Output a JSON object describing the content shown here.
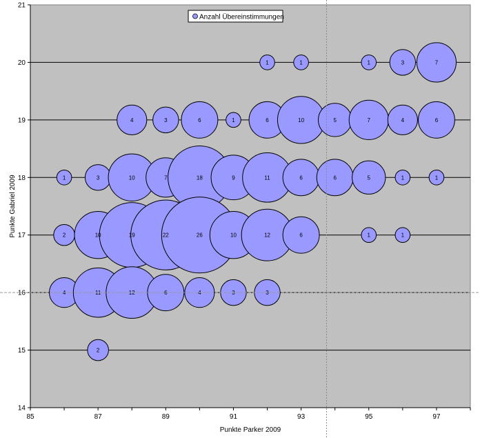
{
  "chart_data": {
    "type": "bubble",
    "xlabel": "Punkte Parker 2009",
    "ylabel": "Punkte Gabriel 2009",
    "xlim": [
      85,
      98
    ],
    "ylim": [
      14,
      21
    ],
    "xticks": [
      85,
      87,
      89,
      91,
      93,
      95,
      97
    ],
    "yticks": [
      14,
      15,
      16,
      17,
      18,
      19,
      20,
      21
    ],
    "grid": "horizontal",
    "legend": {
      "label": "Anzahl Übereinstimmungen",
      "placement": "top-center"
    },
    "colors": {
      "bubble": "#9999ff",
      "plot_bg": "#c0c0c0"
    },
    "series": [
      {
        "name": "Anzahl Übereinstimmungen",
        "points": [
          {
            "x": 92,
            "y": 20,
            "size": 1
          },
          {
            "x": 93,
            "y": 20,
            "size": 1
          },
          {
            "x": 95,
            "y": 20,
            "size": 1
          },
          {
            "x": 96,
            "y": 20,
            "size": 3
          },
          {
            "x": 97,
            "y": 20,
            "size": 7
          },
          {
            "x": 88,
            "y": 19,
            "size": 4
          },
          {
            "x": 89,
            "y": 19,
            "size": 3
          },
          {
            "x": 90,
            "y": 19,
            "size": 6
          },
          {
            "x": 91,
            "y": 19,
            "size": 1
          },
          {
            "x": 92,
            "y": 19,
            "size": 6
          },
          {
            "x": 93,
            "y": 19,
            "size": 10
          },
          {
            "x": 94,
            "y": 19,
            "size": 5
          },
          {
            "x": 95,
            "y": 19,
            "size": 7
          },
          {
            "x": 96,
            "y": 19,
            "size": 4
          },
          {
            "x": 97,
            "y": 19,
            "size": 6
          },
          {
            "x": 86,
            "y": 18,
            "size": 1
          },
          {
            "x": 87,
            "y": 18,
            "size": 3
          },
          {
            "x": 88,
            "y": 18,
            "size": 10
          },
          {
            "x": 89,
            "y": 18,
            "size": 7
          },
          {
            "x": 90,
            "y": 18,
            "size": 18
          },
          {
            "x": 91,
            "y": 18,
            "size": 9
          },
          {
            "x": 92,
            "y": 18,
            "size": 11
          },
          {
            "x": 93,
            "y": 18,
            "size": 6
          },
          {
            "x": 94,
            "y": 18,
            "size": 6
          },
          {
            "x": 95,
            "y": 18,
            "size": 5
          },
          {
            "x": 96,
            "y": 18,
            "size": 1
          },
          {
            "x": 97,
            "y": 18,
            "size": 1
          },
          {
            "x": 86,
            "y": 17,
            "size": 2
          },
          {
            "x": 87,
            "y": 17,
            "size": 10
          },
          {
            "x": 88,
            "y": 17,
            "size": 19
          },
          {
            "x": 89,
            "y": 17,
            "size": 22
          },
          {
            "x": 90,
            "y": 17,
            "size": 26
          },
          {
            "x": 91,
            "y": 17,
            "size": 10
          },
          {
            "x": 92,
            "y": 17,
            "size": 12
          },
          {
            "x": 93,
            "y": 17,
            "size": 6
          },
          {
            "x": 95,
            "y": 17,
            "size": 1
          },
          {
            "x": 96,
            "y": 17,
            "size": 1
          },
          {
            "x": 86,
            "y": 16,
            "size": 4
          },
          {
            "x": 87,
            "y": 16,
            "size": 11
          },
          {
            "x": 88,
            "y": 16,
            "size": 12
          },
          {
            "x": 89,
            "y": 16,
            "size": 6
          },
          {
            "x": 90,
            "y": 16,
            "size": 4
          },
          {
            "x": 91,
            "y": 16,
            "size": 3
          },
          {
            "x": 92,
            "y": 16,
            "size": 3
          },
          {
            "x": 87,
            "y": 15,
            "size": 2
          }
        ]
      }
    ],
    "crosshair": {
      "x": 93.75,
      "y": 16.0
    }
  }
}
